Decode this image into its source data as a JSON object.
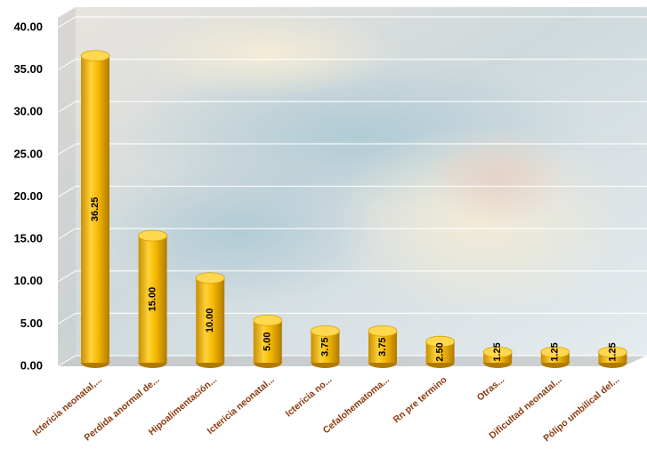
{
  "chart_data": {
    "type": "bar3d",
    "categories": [
      "Ictericia neonatal,...",
      "Perdida anormal de...",
      "Hipoalimentación...",
      "Ictericia neonatal...",
      "Ictericia no...",
      "Cefalohematoma...",
      "Rn pre termino",
      "Otras...",
      "Dificultad neonatal...",
      "Pólipo umbilical del..."
    ],
    "values": [
      36.25,
      15,
      10,
      5,
      3.75,
      3.75,
      2.5,
      1.25,
      1.25,
      1.25
    ],
    "value_labels": [
      "36.25",
      "15.00",
      "10.00",
      "5.00",
      "3.75",
      "3.75",
      "2.50",
      "1.25",
      "1.25",
      "1.25"
    ],
    "color": "#f5b800",
    "ylim": [
      0,
      40
    ],
    "yticks": [
      {
        "value": 0,
        "label": "0.00"
      },
      {
        "value": 5,
        "label": "5.00"
      },
      {
        "value": 10,
        "label": "10.00"
      },
      {
        "value": 15,
        "label": "15.00"
      },
      {
        "value": 20,
        "label": "20.00"
      },
      {
        "value": 25,
        "label": "25.00"
      },
      {
        "value": 30,
        "label": "30.00"
      },
      {
        "value": 35,
        "label": "35.00"
      },
      {
        "value": 40,
        "label": "40.00"
      }
    ],
    "grid": true
  }
}
